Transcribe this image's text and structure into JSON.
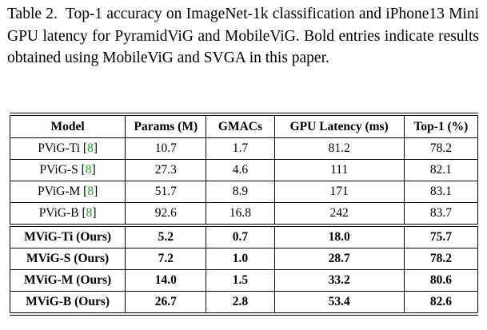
{
  "caption": {
    "label": "Table 2.",
    "text": "Top-1 accuracy on ImageNet-1k classification and iPhone13 Mini GPU latency for PyramidViG and MobileViG. Bold entries indicate results obtained using MobileViG and SVGA in this paper."
  },
  "table": {
    "header": [
      "Model",
      "Params (M)",
      "GMACs",
      "GPU Latency (ms)",
      "Top-1 (%)"
    ],
    "groups": [
      {
        "bold": false,
        "rows": [
          {
            "model": "PViG-Ti",
            "cite": {
              "open": "[",
              "ref": "8",
              "close": "]"
            },
            "values": [
              "10.7",
              "1.7",
              "81.2",
              "78.2"
            ]
          },
          {
            "model": "PViG-S",
            "cite": {
              "open": "[",
              "ref": "8",
              "close": "]"
            },
            "values": [
              "27.3",
              "4.6",
              "111",
              "82.1"
            ]
          },
          {
            "model": "PViG-M",
            "cite": {
              "open": "[",
              "ref": "8",
              "close": "]"
            },
            "values": [
              "51.7",
              "8.9",
              "171",
              "83.1"
            ]
          },
          {
            "model": "PViG-B",
            "cite": {
              "open": "[",
              "ref": "8",
              "close": "]"
            },
            "values": [
              "92.6",
              "16.8",
              "242",
              "83.7"
            ]
          }
        ]
      },
      {
        "bold": true,
        "rows": [
          {
            "model": "MViG-Ti (Ours)",
            "values": [
              "5.2",
              "0.7",
              "18.0",
              "75.7"
            ]
          },
          {
            "model": "MViG-S (Ours)",
            "values": [
              "7.2",
              "1.0",
              "28.7",
              "78.2"
            ]
          },
          {
            "model": "MViG-M (Ours)",
            "values": [
              "14.0",
              "1.5",
              "33.2",
              "80.6"
            ]
          },
          {
            "model": "MViG-B (Ours)",
            "values": [
              "26.7",
              "2.8",
              "53.4",
              "82.6"
            ]
          }
        ]
      }
    ]
  }
}
